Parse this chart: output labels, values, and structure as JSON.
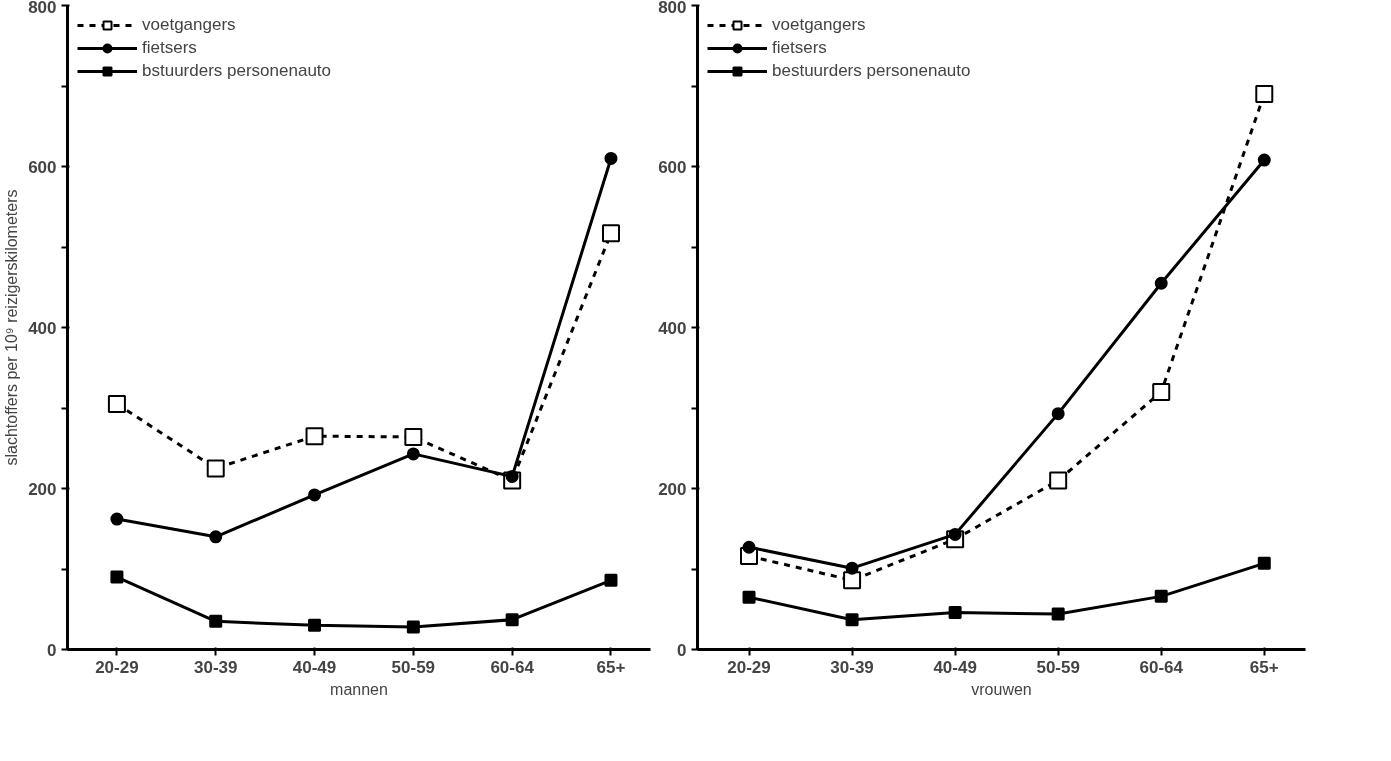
{
  "chart_data": [
    {
      "type": "line",
      "xlabel": "mannen",
      "ylabel": "slachtoffers per 10⁹ reizigerskilometers",
      "categories": [
        "20-29",
        "30-39",
        "40-49",
        "50-59",
        "60-64",
        "65+"
      ],
      "ylim": [
        0,
        800
      ],
      "yticks": [
        0,
        {
          "value": 100,
          "label": null
        },
        200,
        {
          "value": 300,
          "label": null
        },
        400,
        {
          "value": 500,
          "label": null
        },
        600,
        {
          "value": 700,
          "label": null
        },
        800
      ],
      "grid": false,
      "legend": "top left",
      "series": [
        {
          "name": "voetgangers",
          "color": "#000000",
          "line_style": "dashed",
          "marker": "square",
          "values": [
            305,
            225,
            265,
            264,
            210,
            517
          ]
        },
        {
          "name": "fietsers",
          "color": "#000000",
          "line_style": "solid",
          "marker": "circle",
          "values": [
            162,
            140,
            192,
            243,
            215,
            610
          ]
        },
        {
          "name": "bstuurders personenauto",
          "color": "#000000",
          "line_style": "solid",
          "marker": "square",
          "values": [
            90,
            35,
            30,
            28,
            37,
            86
          ]
        }
      ]
    },
    {
      "type": "line",
      "xlabel": "vrouwen",
      "categories": [
        "20-29",
        "30-39",
        "40-49",
        "50-59",
        "60-64",
        "65+"
      ],
      "ylim": [
        0,
        800
      ],
      "yticks": [
        0,
        {
          "value": 100,
          "label": null
        },
        200,
        {
          "value": 300,
          "label": null
        },
        400,
        {
          "value": 500,
          "label": null
        },
        600,
        {
          "value": 700,
          "label": null
        },
        800
      ],
      "grid": false,
      "legend": "top left",
      "series": [
        {
          "name": "voetgangers",
          "color": "#000000",
          "line_style": "dashed",
          "marker": "square",
          "values": [
            116,
            86,
            137,
            210,
            320,
            690
          ]
        },
        {
          "name": "fietsers",
          "color": "#000000",
          "line_style": "solid",
          "marker": "circle",
          "values": [
            127,
            101,
            143,
            293,
            455,
            608
          ]
        },
        {
          "name": "bestuurders personenauto",
          "color": "#000000",
          "line_style": "solid",
          "marker": "square",
          "values": [
            65,
            37,
            46,
            44,
            66,
            107
          ]
        }
      ]
    }
  ]
}
